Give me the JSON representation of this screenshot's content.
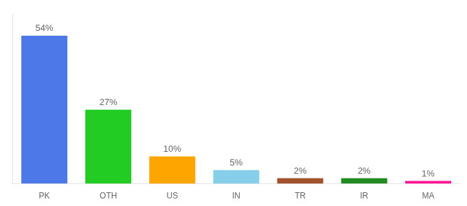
{
  "chart_data": {
    "type": "bar",
    "categories": [
      "PK",
      "OTH",
      "US",
      "IN",
      "TR",
      "IR",
      "MA"
    ],
    "values": [
      54,
      27,
      10,
      5,
      2,
      2,
      1
    ],
    "value_labels": [
      "54%",
      "27%",
      "10%",
      "5%",
      "2%",
      "2%",
      "1%"
    ],
    "colors": [
      "#4d79e8",
      "#22cc22",
      "#ffa500",
      "#87ceeb",
      "#a0522d",
      "#228b22",
      "#ff1493"
    ],
    "ylim": [
      0,
      62
    ],
    "yticks": [],
    "grid": false,
    "tick_labels": "x",
    "data_labels": true
  }
}
